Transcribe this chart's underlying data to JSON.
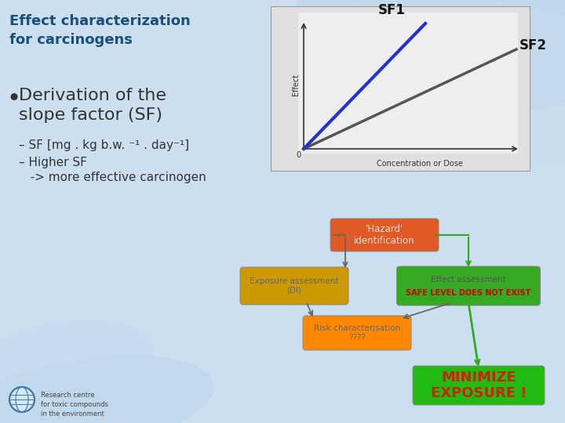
{
  "bg_color": "#ccdff0",
  "title": "Effect characterization\nfor carcinogens",
  "title_color": "#1a4f7a",
  "title_fontsize": 13,
  "bullet_text": "Derivation of the\nslope factor (SF)",
  "bullet_fontsize": 16,
  "sub_bullets": [
    "– SF [mg . kg b.w. ⁻¹ . day⁻¹]",
    "– Higher SF\n   -> more effective carcinogen"
  ],
  "sub_bullet_fontsize": 11,
  "graph": {
    "xlabel": "Concentration or Dose",
    "ylabel": "Effect",
    "sf1_label": "SF1",
    "sf2_label": "SF2",
    "sf1_color": "#2233cc",
    "sf2_color": "#555555",
    "bg": "#e8e8e8"
  },
  "flowchart": {
    "hazard_box": {
      "text": "'Hazard'\nidentification",
      "color": "#e05a25",
      "text_color": "#dddddd"
    },
    "exposure_box": {
      "text": "Exposure assessment\n(DI)",
      "color": "#cc9900",
      "text_color": "#666666"
    },
    "effect_box_line1": "Effect assessment",
    "effect_box_line2": "SAFE LEVEL DOES NOT EXIST",
    "effect_box_color": "#33aa22",
    "effect_text_color1": "#555555",
    "effect_text_color2": "#cc0000",
    "risk_box": {
      "text": "Risk characterisation\n????",
      "color": "#ff8800",
      "text_color": "#666666"
    },
    "minimize_box_color": "#22bb11",
    "minimize_text": "MINIMIZE\nEXPOSURE !",
    "minimize_text_color": "#cc2200",
    "arrow_gray": "#666666",
    "arrow_green": "#33aa22"
  },
  "logo_text": "Research centre\nfor toxic compounds\nin the environment",
  "logo_fontsize": 6
}
